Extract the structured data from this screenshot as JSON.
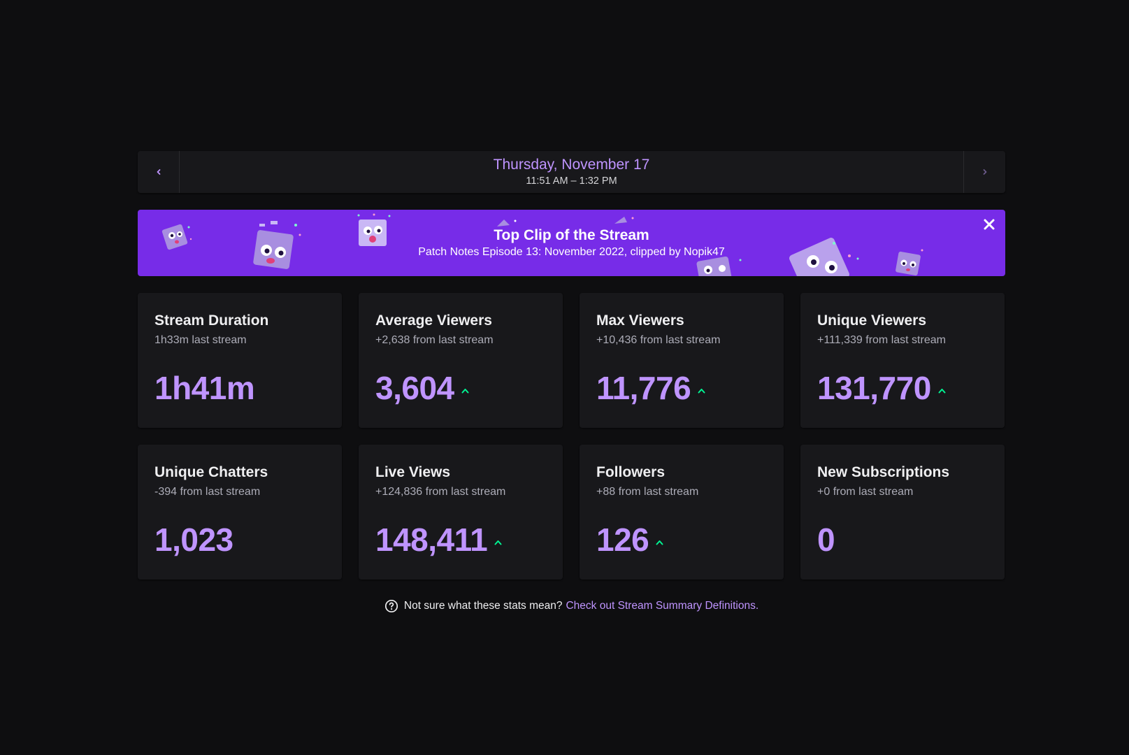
{
  "header": {
    "date": "Thursday, November 17",
    "time_range": "11:51 AM – 1:32 PM",
    "prev_icon": "chevron-left-icon",
    "next_icon": "chevron-right-icon"
  },
  "banner": {
    "title": "Top Clip of the Stream",
    "subtitle": "Patch Notes Episode 13: November 2022, clipped by Nopik47",
    "close_icon": "close-icon",
    "background_color": "#772ce8"
  },
  "stats": [
    {
      "title": "Stream Duration",
      "subtitle": "1h33m last stream",
      "value": "1h41m",
      "trend": "none"
    },
    {
      "title": "Average Viewers",
      "subtitle": "+2,638 from last stream",
      "value": "3,604",
      "trend": "up"
    },
    {
      "title": "Max Viewers",
      "subtitle": "+10,436 from last stream",
      "value": "11,776",
      "trend": "up"
    },
    {
      "title": "Unique Viewers",
      "subtitle": "+111,339 from last stream",
      "value": "131,770",
      "trend": "up"
    },
    {
      "title": "Unique Chatters",
      "subtitle": "-394 from last stream",
      "value": "1,023",
      "trend": "none"
    },
    {
      "title": "Live Views",
      "subtitle": "+124,836 from last stream",
      "value": "148,411",
      "trend": "up"
    },
    {
      "title": "Followers",
      "subtitle": "+88 from last stream",
      "value": "126",
      "trend": "up"
    },
    {
      "title": "New Subscriptions",
      "subtitle": "+0 from last stream",
      "value": "0",
      "trend": "none"
    }
  ],
  "help": {
    "text": "Not sure what these stats mean?",
    "link": "Check out Stream Summary Definitions.",
    "icon": "question-circle-icon"
  },
  "colors": {
    "accent": "#bf94ff",
    "trend_up": "#00f593",
    "card_bg": "#18181b",
    "page_bg": "#0e0e10"
  }
}
